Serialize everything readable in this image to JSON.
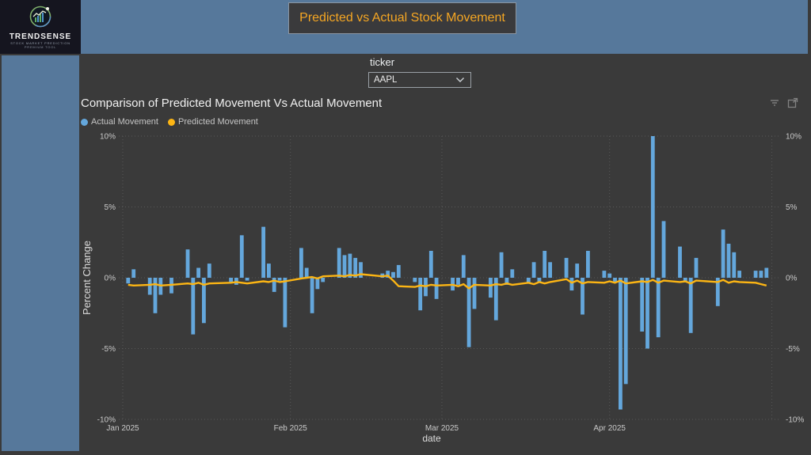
{
  "branding": {
    "name": "TRENDSENSE",
    "tagline": "STOCK MARKET PREDICTION",
    "subtagline": "PREMIUM TOOL"
  },
  "header": {
    "title": "Predicted vs Actual Stock Movement",
    "title_color": "#F5A623",
    "band_color": "#56789B"
  },
  "controls": {
    "ticker_label": "ticker",
    "ticker_value": "AAPL"
  },
  "chart": {
    "title": "Comparison of Predicted Movement Vs Actual Movement",
    "legend": [
      {
        "label": "Actual Movement",
        "color": "#64A7DC"
      },
      {
        "label": "Predicted Movement",
        "color": "#FCB514"
      }
    ],
    "toolbar_icons": [
      "filter-icon",
      "expand-icon"
    ]
  },
  "chart_data": {
    "type": "bar",
    "title": "Comparison of Predicted Movement Vs Actual Movement",
    "xlabel": "date",
    "ylabel": "Percent Change",
    "ylim": [
      -10,
      10
    ],
    "ytick_values": [
      10,
      5,
      0,
      -5,
      -10
    ],
    "ytick_labels": [
      "10%",
      "5%",
      "0%",
      "-5%",
      "-10%"
    ],
    "xtick_labels": [
      "Jan 2025",
      "Feb 2025",
      "Mar 2025",
      "Apr 2025"
    ],
    "grid": "dotted",
    "legend_position": "top-left",
    "x": [
      "2025-01-02",
      "2025-01-03",
      "2025-01-06",
      "2025-01-07",
      "2025-01-08",
      "2025-01-10",
      "2025-01-13",
      "2025-01-14",
      "2025-01-15",
      "2025-01-16",
      "2025-01-17",
      "2025-01-21",
      "2025-01-22",
      "2025-01-23",
      "2025-01-24",
      "2025-01-27",
      "2025-01-28",
      "2025-01-29",
      "2025-01-30",
      "2025-01-31",
      "2025-02-03",
      "2025-02-04",
      "2025-02-05",
      "2025-02-06",
      "2025-02-07",
      "2025-02-10",
      "2025-02-11",
      "2025-02-12",
      "2025-02-13",
      "2025-02-14",
      "2025-02-18",
      "2025-02-19",
      "2025-02-20",
      "2025-02-21",
      "2025-02-24",
      "2025-02-25",
      "2025-02-26",
      "2025-02-27",
      "2025-02-28",
      "2025-03-03",
      "2025-03-04",
      "2025-03-05",
      "2025-03-06",
      "2025-03-07",
      "2025-03-10",
      "2025-03-11",
      "2025-03-12",
      "2025-03-13",
      "2025-03-14",
      "2025-03-17",
      "2025-03-18",
      "2025-03-19",
      "2025-03-20",
      "2025-03-21",
      "2025-03-24",
      "2025-03-25",
      "2025-03-26",
      "2025-03-27",
      "2025-03-28",
      "2025-03-31",
      "2025-04-01",
      "2025-04-02",
      "2025-04-03",
      "2025-04-04",
      "2025-04-07",
      "2025-04-08",
      "2025-04-09",
      "2025-04-10",
      "2025-04-11",
      "2025-04-14",
      "2025-04-15",
      "2025-04-16",
      "2025-04-17",
      "2025-04-21",
      "2025-04-22",
      "2025-04-23",
      "2025-04-24",
      "2025-04-25",
      "2025-04-28",
      "2025-04-29",
      "2025-04-30"
    ],
    "series": [
      {
        "name": "Actual Movement",
        "type": "bar",
        "color": "#64A7DC",
        "values": [
          -0.4,
          0.6,
          -1.2,
          -2.5,
          -1.2,
          -1.1,
          2.0,
          -4.0,
          0.7,
          -3.2,
          1.0,
          -0.3,
          -0.5,
          3.0,
          -0.2,
          3.6,
          1.0,
          -1.0,
          -0.2,
          -3.5,
          2.1,
          0.7,
          -2.5,
          -0.8,
          -0.3,
          2.1,
          1.6,
          1.7,
          1.4,
          1.1,
          0.3,
          0.5,
          0.4,
          0.9,
          -0.3,
          -2.3,
          -1.3,
          1.9,
          -1.5,
          -0.9,
          -0.5,
          1.6,
          -4.9,
          -2.2,
          -1.4,
          -3.0,
          1.8,
          -0.5,
          0.6,
          -0.4,
          1.1,
          -0.3,
          1.9,
          1.1,
          1.4,
          -0.9,
          1.0,
          -2.6,
          1.9,
          0.5,
          0.3,
          -0.3,
          -9.3,
          -7.5,
          -3.8,
          -5.0,
          10.0,
          -4.2,
          4.0,
          2.2,
          -0.3,
          -3.9,
          1.4,
          -2.0,
          3.4,
          2.4,
          1.8,
          0.5,
          0.5,
          0.5,
          0.7
        ]
      },
      {
        "name": "Predicted Movement",
        "type": "line",
        "color": "#FCB514",
        "values": [
          -0.5,
          -0.55,
          -0.5,
          -0.45,
          -0.55,
          -0.5,
          -0.4,
          -0.45,
          -0.35,
          -0.5,
          -0.4,
          -0.35,
          -0.3,
          -0.35,
          -0.4,
          -0.25,
          -0.3,
          -0.2,
          -0.3,
          -0.25,
          -0.05,
          0.0,
          0.05,
          -0.05,
          0.1,
          0.15,
          0.1,
          0.2,
          0.15,
          0.25,
          0.1,
          0.15,
          -0.2,
          -0.6,
          -0.65,
          -0.55,
          -0.6,
          -0.5,
          -0.55,
          -0.5,
          -0.6,
          -0.45,
          -0.75,
          -0.5,
          -0.55,
          -0.45,
          -0.5,
          -0.4,
          -0.5,
          -0.35,
          -0.45,
          -0.3,
          -0.4,
          -0.3,
          -0.1,
          -0.35,
          -0.2,
          -0.4,
          -0.3,
          -0.35,
          -0.25,
          -0.35,
          -0.2,
          -0.4,
          -0.25,
          -0.3,
          -0.15,
          -0.35,
          -0.2,
          -0.3,
          -0.25,
          -0.4,
          -0.2,
          -0.3,
          -0.15,
          -0.35,
          -0.25,
          -0.3,
          -0.35,
          -0.45,
          -0.55
        ]
      }
    ]
  }
}
